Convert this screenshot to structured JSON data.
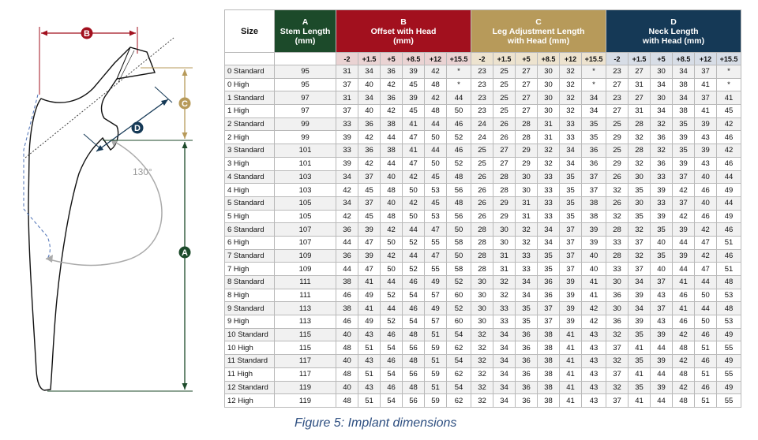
{
  "figure": {
    "caption": "Figure 5: Implant dimensions",
    "labels": {
      "a": "A",
      "b": "B",
      "c": "C",
      "d": "D"
    },
    "angle_label": "130°",
    "colors": {
      "A": "#1c4a2a",
      "B": "#a2101e",
      "C": "#b79a5a",
      "D": "#153956"
    }
  },
  "table": {
    "size_header": "Size",
    "groups": [
      {
        "letter": "A",
        "title": "Stem Length",
        "unit": "(mm)"
      },
      {
        "letter": "B",
        "title": "Offset with Head",
        "unit": "(mm)"
      },
      {
        "letter": "C",
        "title": "Leg Adjustment Length",
        "unit": "with Head (mm)"
      },
      {
        "letter": "D",
        "title": "Neck Length",
        "unit": "with Head (mm)"
      }
    ],
    "offsets": [
      "-2",
      "+1.5",
      "+5",
      "+8.5",
      "+12",
      "+15.5"
    ],
    "rows": [
      {
        "size": "0 Standard",
        "a": "95",
        "b": [
          "31",
          "34",
          "36",
          "39",
          "42",
          "*"
        ],
        "c": [
          "23",
          "25",
          "27",
          "30",
          "32",
          "*"
        ],
        "d": [
          "23",
          "27",
          "30",
          "34",
          "37",
          "*"
        ]
      },
      {
        "size": "0 High",
        "a": "95",
        "b": [
          "37",
          "40",
          "42",
          "45",
          "48",
          "*"
        ],
        "c": [
          "23",
          "25",
          "27",
          "30",
          "32",
          "*"
        ],
        "d": [
          "27",
          "31",
          "34",
          "38",
          "41",
          "*"
        ]
      },
      {
        "size": "1 Standard",
        "a": "97",
        "b": [
          "31",
          "34",
          "36",
          "39",
          "42",
          "44"
        ],
        "c": [
          "23",
          "25",
          "27",
          "30",
          "32",
          "34"
        ],
        "d": [
          "23",
          "27",
          "30",
          "34",
          "37",
          "41"
        ]
      },
      {
        "size": "1 High",
        "a": "97",
        "b": [
          "37",
          "40",
          "42",
          "45",
          "48",
          "50"
        ],
        "c": [
          "23",
          "25",
          "27",
          "30",
          "32",
          "34"
        ],
        "d": [
          "27",
          "31",
          "34",
          "38",
          "41",
          "45"
        ]
      },
      {
        "size": "2 Standard",
        "a": "99",
        "b": [
          "33",
          "36",
          "38",
          "41",
          "44",
          "46"
        ],
        "c": [
          "24",
          "26",
          "28",
          "31",
          "33",
          "35"
        ],
        "d": [
          "25",
          "28",
          "32",
          "35",
          "39",
          "42"
        ]
      },
      {
        "size": "2 High",
        "a": "99",
        "b": [
          "39",
          "42",
          "44",
          "47",
          "50",
          "52"
        ],
        "c": [
          "24",
          "26",
          "28",
          "31",
          "33",
          "35"
        ],
        "d": [
          "29",
          "32",
          "36",
          "39",
          "43",
          "46"
        ]
      },
      {
        "size": "3 Standard",
        "a": "101",
        "b": [
          "33",
          "36",
          "38",
          "41",
          "44",
          "46"
        ],
        "c": [
          "25",
          "27",
          "29",
          "32",
          "34",
          "36"
        ],
        "d": [
          "25",
          "28",
          "32",
          "35",
          "39",
          "42"
        ]
      },
      {
        "size": "3 High",
        "a": "101",
        "b": [
          "39",
          "42",
          "44",
          "47",
          "50",
          "52"
        ],
        "c": [
          "25",
          "27",
          "29",
          "32",
          "34",
          "36"
        ],
        "d": [
          "29",
          "32",
          "36",
          "39",
          "43",
          "46"
        ]
      },
      {
        "size": "4 Standard",
        "a": "103",
        "b": [
          "34",
          "37",
          "40",
          "42",
          "45",
          "48"
        ],
        "c": [
          "26",
          "28",
          "30",
          "33",
          "35",
          "37"
        ],
        "d": [
          "26",
          "30",
          "33",
          "37",
          "40",
          "44"
        ]
      },
      {
        "size": "4 High",
        "a": "103",
        "b": [
          "42",
          "45",
          "48",
          "50",
          "53",
          "56"
        ],
        "c": [
          "26",
          "28",
          "30",
          "33",
          "35",
          "37"
        ],
        "d": [
          "32",
          "35",
          "39",
          "42",
          "46",
          "49"
        ]
      },
      {
        "size": "5 Standard",
        "a": "105",
        "b": [
          "34",
          "37",
          "40",
          "42",
          "45",
          "48"
        ],
        "c": [
          "26",
          "29",
          "31",
          "33",
          "35",
          "38"
        ],
        "d": [
          "26",
          "30",
          "33",
          "37",
          "40",
          "44"
        ]
      },
      {
        "size": "5 High",
        "a": "105",
        "b": [
          "42",
          "45",
          "48",
          "50",
          "53",
          "56"
        ],
        "c": [
          "26",
          "29",
          "31",
          "33",
          "35",
          "38"
        ],
        "d": [
          "32",
          "35",
          "39",
          "42",
          "46",
          "49"
        ]
      },
      {
        "size": "6 Standard",
        "a": "107",
        "b": [
          "36",
          "39",
          "42",
          "44",
          "47",
          "50"
        ],
        "c": [
          "28",
          "30",
          "32",
          "34",
          "37",
          "39"
        ],
        "d": [
          "28",
          "32",
          "35",
          "39",
          "42",
          "46"
        ]
      },
      {
        "size": "6 High",
        "a": "107",
        "b": [
          "44",
          "47",
          "50",
          "52",
          "55",
          "58"
        ],
        "c": [
          "28",
          "30",
          "32",
          "34",
          "37",
          "39"
        ],
        "d": [
          "33",
          "37",
          "40",
          "44",
          "47",
          "51"
        ]
      },
      {
        "size": "7 Standard",
        "a": "109",
        "b": [
          "36",
          "39",
          "42",
          "44",
          "47",
          "50"
        ],
        "c": [
          "28",
          "31",
          "33",
          "35",
          "37",
          "40"
        ],
        "d": [
          "28",
          "32",
          "35",
          "39",
          "42",
          "46"
        ]
      },
      {
        "size": "7 High",
        "a": "109",
        "b": [
          "44",
          "47",
          "50",
          "52",
          "55",
          "58"
        ],
        "c": [
          "28",
          "31",
          "33",
          "35",
          "37",
          "40"
        ],
        "d": [
          "33",
          "37",
          "40",
          "44",
          "47",
          "51"
        ]
      },
      {
        "size": "8 Standard",
        "a": "111",
        "b": [
          "38",
          "41",
          "44",
          "46",
          "49",
          "52"
        ],
        "c": [
          "30",
          "32",
          "34",
          "36",
          "39",
          "41"
        ],
        "d": [
          "30",
          "34",
          "37",
          "41",
          "44",
          "48"
        ]
      },
      {
        "size": "8 High",
        "a": "111",
        "b": [
          "46",
          "49",
          "52",
          "54",
          "57",
          "60"
        ],
        "c": [
          "30",
          "32",
          "34",
          "36",
          "39",
          "41"
        ],
        "d": [
          "36",
          "39",
          "43",
          "46",
          "50",
          "53"
        ]
      },
      {
        "size": "9 Standard",
        "a": "113",
        "b": [
          "38",
          "41",
          "44",
          "46",
          "49",
          "52"
        ],
        "c": [
          "30",
          "33",
          "35",
          "37",
          "39",
          "42"
        ],
        "d": [
          "30",
          "34",
          "37",
          "41",
          "44",
          "48"
        ]
      },
      {
        "size": "9 High",
        "a": "113",
        "b": [
          "46",
          "49",
          "52",
          "54",
          "57",
          "60"
        ],
        "c": [
          "30",
          "33",
          "35",
          "37",
          "39",
          "42"
        ],
        "d": [
          "36",
          "39",
          "43",
          "46",
          "50",
          "53"
        ]
      },
      {
        "size": "10 Standard",
        "a": "115",
        "b": [
          "40",
          "43",
          "46",
          "48",
          "51",
          "54"
        ],
        "c": [
          "32",
          "34",
          "36",
          "38",
          "41",
          "43"
        ],
        "d": [
          "32",
          "35",
          "39",
          "42",
          "46",
          "49"
        ]
      },
      {
        "size": "10 High",
        "a": "115",
        "b": [
          "48",
          "51",
          "54",
          "56",
          "59",
          "62"
        ],
        "c": [
          "32",
          "34",
          "36",
          "38",
          "41",
          "43"
        ],
        "d": [
          "37",
          "41",
          "44",
          "48",
          "51",
          "55"
        ]
      },
      {
        "size": "11 Standard",
        "a": "117",
        "b": [
          "40",
          "43",
          "46",
          "48",
          "51",
          "54"
        ],
        "c": [
          "32",
          "34",
          "36",
          "38",
          "41",
          "43"
        ],
        "d": [
          "32",
          "35",
          "39",
          "42",
          "46",
          "49"
        ]
      },
      {
        "size": "11 High",
        "a": "117",
        "b": [
          "48",
          "51",
          "54",
          "56",
          "59",
          "62"
        ],
        "c": [
          "32",
          "34",
          "36",
          "38",
          "41",
          "43"
        ],
        "d": [
          "37",
          "41",
          "44",
          "48",
          "51",
          "55"
        ]
      },
      {
        "size": "12 Standard",
        "a": "119",
        "b": [
          "40",
          "43",
          "46",
          "48",
          "51",
          "54"
        ],
        "c": [
          "32",
          "34",
          "36",
          "38",
          "41",
          "43"
        ],
        "d": [
          "32",
          "35",
          "39",
          "42",
          "46",
          "49"
        ]
      },
      {
        "size": "12 High",
        "a": "119",
        "b": [
          "48",
          "51",
          "54",
          "56",
          "59",
          "62"
        ],
        "c": [
          "32",
          "34",
          "36",
          "38",
          "41",
          "43"
        ],
        "d": [
          "37",
          "41",
          "44",
          "48",
          "51",
          "55"
        ]
      }
    ]
  }
}
